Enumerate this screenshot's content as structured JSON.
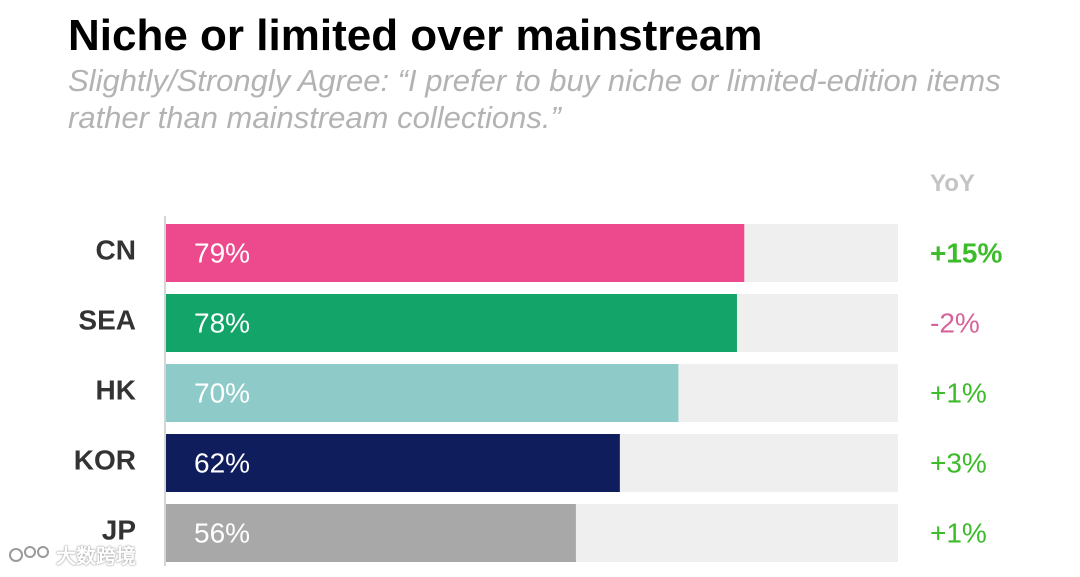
{
  "chart_data": {
    "type": "bar",
    "orientation": "horizontal",
    "title": "Niche or limited over mainstream",
    "subtitle": "Slightly/Strongly Agree: “I prefer to buy niche or limited-edition items rather than mainstream collections.”",
    "categories": [
      "CN",
      "SEA",
      "HK",
      "KOR",
      "JP"
    ],
    "values": [
      79,
      78,
      70,
      62,
      56
    ],
    "value_labels": [
      "79%",
      "78%",
      "70%",
      "62%",
      "56%"
    ],
    "bar_colors": [
      "#ec4a8c",
      "#13a46a",
      "#8ecbc8",
      "#0f1d5c",
      "#a8a8a8"
    ],
    "track_color": "#efefef",
    "xlim": [
      0,
      100
    ],
    "yoy_header": "YoY",
    "yoy": [
      "+15%",
      "-2%",
      "+1%",
      "+3%",
      "+1%"
    ],
    "yoy_colors": [
      "#3cbc2a",
      "#d6649a",
      "#3cbc2a",
      "#3cbc2a",
      "#3cbc2a"
    ],
    "yoy_bold": [
      true,
      false,
      false,
      false,
      false
    ],
    "grid": false
  },
  "watermark": {
    "text": "大数跨境"
  }
}
